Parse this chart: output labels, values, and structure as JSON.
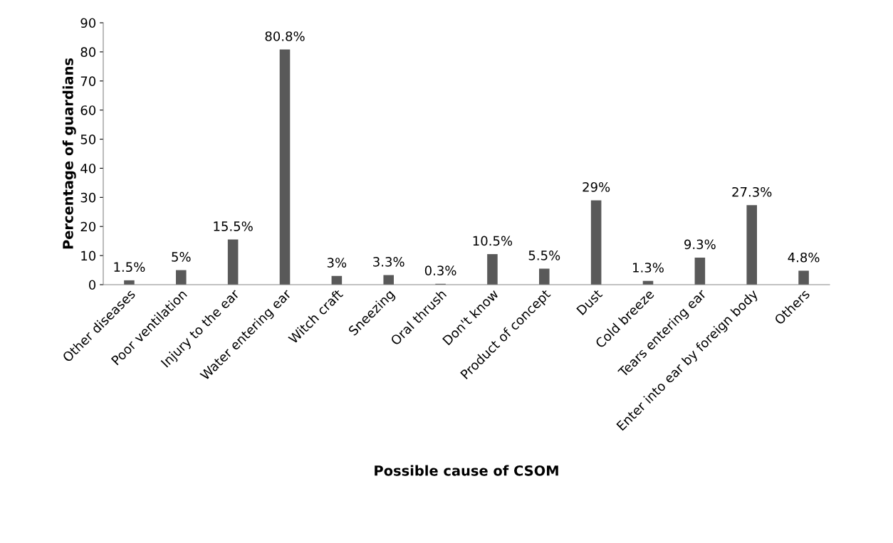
{
  "chart_data": {
    "type": "bar",
    "xlabel": "Possible cause of CSOM",
    "ylabel": "Percentage of guardians",
    "categories": [
      "Other diseases",
      "Poor ventilation",
      "Injury to the ear",
      "Water entering ear",
      "Witch craft",
      "Sneezing",
      "Oral thrush",
      "Don't know",
      "Product of concept",
      "Dust",
      "Cold breeze",
      "Tears entering ear",
      "Enter into ear by foreign body",
      "Others"
    ],
    "values": [
      1.5,
      5,
      15.5,
      80.8,
      3,
      3.3,
      0.3,
      10.5,
      5.5,
      29,
      1.3,
      9.3,
      27.3,
      4.8
    ],
    "value_labels": [
      "1.5%",
      "5%",
      "15.5%",
      "80.8%",
      "3%",
      "3.3%",
      "0.3%",
      "10.5%",
      "5.5%",
      "29%",
      "1.3%",
      "9.3%",
      "27.3%",
      "4.8%"
    ],
    "color": "#595959",
    "ylim": [
      0,
      90
    ],
    "yticks": [
      0,
      10,
      20,
      30,
      40,
      50,
      60,
      70,
      80,
      90
    ],
    "grid": false,
    "legend": false
  }
}
